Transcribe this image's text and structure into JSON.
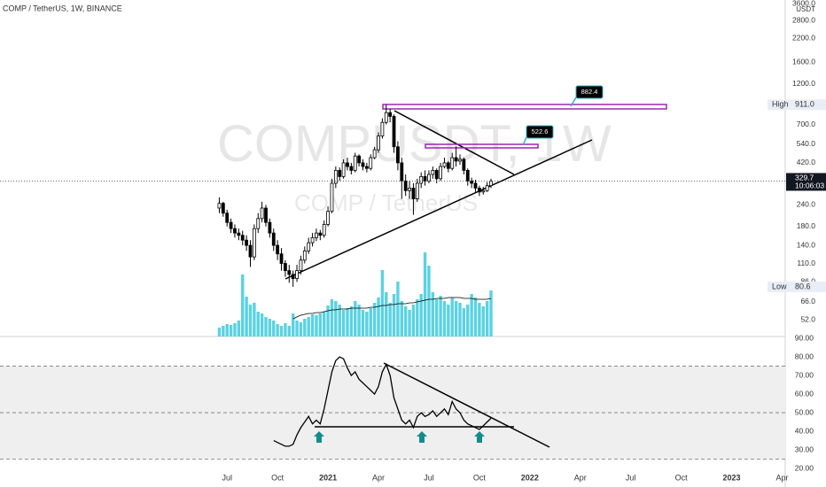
{
  "header": "COMP / TetherUS, 1W, BINANCE",
  "chart_data": [
    {
      "type": "candlestick",
      "watermark": [
        "COMPUSDT, 1W",
        "COMP / TetherUS"
      ],
      "y_unit": "USDT",
      "log_scale": true,
      "grid": false,
      "xlim": [
        -84.5,
        117.8
      ],
      "xticks": [
        {
          "value": -26,
          "label": "Jul"
        },
        {
          "value": -13,
          "label": "Oct"
        },
        {
          "value": 0,
          "label": "2021"
        },
        {
          "value": 13,
          "label": "Apr"
        },
        {
          "value": 26,
          "label": "Jul"
        },
        {
          "value": 39,
          "label": "Oct"
        },
        {
          "value": 52,
          "label": "2022"
        },
        {
          "value": 65,
          "label": "Apr"
        },
        {
          "value": 78,
          "label": "Jul"
        },
        {
          "value": 91,
          "label": "Oct"
        },
        {
          "value": 104,
          "label": "2023"
        },
        {
          "value": 117,
          "label": "Apr"
        }
      ],
      "ylim": [
        41.6,
        3673
      ],
      "yticks": [
        {
          "value": 3600,
          "label": "3600.0"
        },
        {
          "value": 2800,
          "label": "2800.0"
        },
        {
          "value": 2200,
          "label": "2200.0"
        },
        {
          "value": 1600,
          "label": "1600.0"
        },
        {
          "value": 1200,
          "label": "1200.0"
        },
        {
          "value": 700,
          "label": "700.0"
        },
        {
          "value": 540,
          "label": "540.0"
        },
        {
          "value": 420,
          "label": "420.0"
        },
        {
          "value": 240,
          "label": "240.0"
        },
        {
          "value": 180,
          "label": "180.0"
        },
        {
          "value": 140,
          "label": "140.0"
        },
        {
          "value": 110,
          "label": "110.0"
        },
        {
          "value": 86,
          "label": "86.0"
        },
        {
          "value": 66,
          "label": "66.0"
        },
        {
          "value": 52,
          "label": "52.0"
        }
      ],
      "up_color": "#ffffff",
      "down_color": "#000000",
      "volume_color": "#5ad2e2",
      "x": [
        -28,
        -27,
        -26,
        -25,
        -24,
        -23,
        -22,
        -21,
        -20,
        -19,
        -18,
        -17,
        -16,
        -15,
        -14,
        -13,
        -12,
        -11,
        -10,
        -9,
        -8,
        -7,
        -6,
        -5,
        -4,
        -3,
        -2,
        -1,
        0,
        1,
        2,
        3,
        4,
        5,
        6,
        7,
        8,
        9,
        10,
        11,
        12,
        13,
        14,
        15,
        16,
        17,
        18,
        19,
        20,
        21,
        22,
        23,
        24,
        25,
        26,
        27,
        28,
        29,
        30,
        31,
        32,
        33,
        34,
        35,
        36,
        37,
        38,
        39,
        40,
        41,
        42
      ],
      "open": [
        230,
        245,
        215,
        190,
        175,
        165,
        160,
        150,
        140,
        120,
        175,
        200,
        230,
        190,
        165,
        140,
        125,
        110,
        100,
        95,
        90,
        100,
        115,
        130,
        145,
        155,
        165,
        160,
        185,
        220,
        320,
        380,
        350,
        420,
        400,
        380,
        460,
        420,
        400,
        390,
        450,
        500,
        600,
        720,
        820,
        780,
        520,
        420,
        330,
        290,
        300,
        260,
        320,
        350,
        330,
        360,
        380,
        340,
        400,
        420,
        390,
        450,
        430,
        440,
        380,
        330,
        320,
        300,
        285,
        290,
        310
      ],
      "high": [
        265,
        250,
        225,
        200,
        185,
        175,
        170,
        160,
        150,
        185,
        215,
        250,
        240,
        200,
        175,
        150,
        135,
        115,
        108,
        100,
        108,
        122,
        138,
        155,
        165,
        175,
        172,
        195,
        235,
        340,
        400,
        395,
        440,
        450,
        420,
        480,
        470,
        440,
        420,
        470,
        520,
        630,
        760,
        911,
        860,
        800,
        560,
        450,
        360,
        330,
        320,
        340,
        370,
        380,
        380,
        400,
        390,
        420,
        450,
        430,
        480,
        522.6,
        470,
        450,
        390,
        345,
        335,
        310,
        305,
        325,
        340
      ],
      "low": [
        215,
        205,
        180,
        165,
        155,
        150,
        140,
        130,
        105,
        115,
        165,
        190,
        180,
        155,
        130,
        115,
        100,
        92,
        85,
        80.6,
        86,
        95,
        110,
        125,
        138,
        148,
        150,
        155,
        180,
        215,
        300,
        330,
        340,
        380,
        360,
        370,
        400,
        380,
        370,
        380,
        440,
        480,
        580,
        700,
        720,
        480,
        380,
        260,
        270,
        260,
        210,
        250,
        300,
        310,
        320,
        340,
        320,
        330,
        390,
        370,
        380,
        400,
        410,
        360,
        310,
        300,
        285,
        270,
        275,
        285,
        300
      ],
      "close": [
        245,
        215,
        190,
        175,
        165,
        160,
        150,
        140,
        120,
        175,
        200,
        230,
        190,
        165,
        140,
        125,
        110,
        100,
        95,
        90,
        100,
        115,
        130,
        145,
        155,
        165,
        160,
        185,
        220,
        320,
        380,
        350,
        420,
        400,
        380,
        460,
        420,
        400,
        390,
        450,
        500,
        600,
        720,
        820,
        780,
        520,
        420,
        330,
        290,
        300,
        260,
        320,
        350,
        330,
        360,
        380,
        340,
        400,
        420,
        390,
        450,
        430,
        440,
        380,
        330,
        320,
        300,
        285,
        290,
        310,
        329.7
      ],
      "volume_lim": [
        0,
        100
      ],
      "volume": [
        10,
        12,
        14,
        13,
        15,
        18,
        70,
        45,
        36,
        38,
        28,
        26,
        22,
        20,
        18,
        14,
        12,
        15,
        12,
        26,
        18,
        16,
        20,
        22,
        25,
        24,
        26,
        28,
        35,
        42,
        40,
        36,
        30,
        32,
        34,
        40,
        36,
        30,
        28,
        32,
        38,
        44,
        75,
        50,
        38,
        48,
        62,
        40,
        34,
        30,
        36,
        42,
        48,
        95,
        80,
        50,
        42,
        46,
        40,
        36,
        44,
        40,
        38,
        32,
        36,
        48,
        44,
        38,
        34,
        40,
        52
      ],
      "volume_ma": [
        null,
        null,
        null,
        null,
        null,
        null,
        null,
        null,
        null,
        null,
        null,
        null,
        null,
        null,
        null,
        null,
        null,
        null,
        null,
        20,
        22,
        24,
        25,
        26,
        26,
        27,
        27,
        28,
        29,
        30,
        30,
        31,
        31,
        31,
        32,
        32,
        32,
        32,
        32,
        33,
        33,
        34,
        35,
        35,
        36,
        36,
        37,
        37,
        37,
        38,
        38,
        39,
        40,
        41,
        42,
        42,
        43,
        43,
        43,
        44,
        44,
        44,
        44,
        43,
        43,
        43,
        42,
        42,
        42,
        42,
        43
      ],
      "high_marker": {
        "name": "High",
        "value": 911,
        "value_label": "911.0"
      },
      "low_marker": {
        "name": "Low",
        "value": 80.6
      },
      "last": {
        "value": 329.7,
        "countdown": "10:06:03"
      },
      "callouts": [
        882.4,
        522.6
      ]
    },
    {
      "type": "line",
      "color": "#000000",
      "xlim": [
        -84.5,
        117.8
      ],
      "ylim": [
        11,
        90.5
      ],
      "yticks": [
        {
          "value": 90,
          "label": "90.00"
        },
        {
          "value": 80,
          "label": "80.00"
        },
        {
          "value": 70,
          "label": "70.00"
        },
        {
          "value": 60,
          "label": "60.00"
        },
        {
          "value": 50,
          "label": "50.00"
        },
        {
          "value": 40,
          "label": "40.00"
        },
        {
          "value": 30,
          "label": "30.00"
        },
        {
          "value": 20,
          "label": "20.00"
        }
      ],
      "band": [
        25,
        75
      ],
      "levels": [
        75,
        50,
        25
      ],
      "x": [
        -14,
        -13,
        -12,
        -11,
        -10,
        -9,
        -8,
        -7,
        -6,
        -5,
        -4,
        -3,
        -2,
        -1,
        0,
        1,
        2,
        3,
        4,
        5,
        6,
        7,
        8,
        9,
        10,
        11,
        12,
        13,
        14,
        15,
        16,
        17,
        18,
        19,
        20,
        21,
        22,
        23,
        24,
        25,
        26,
        27,
        28,
        29,
        30,
        31,
        32,
        33,
        34,
        35,
        36,
        37,
        38,
        39,
        40,
        41,
        42
      ],
      "values": [
        35,
        34,
        33,
        32,
        32,
        33,
        38,
        42,
        45,
        48,
        44,
        46,
        44,
        52,
        62,
        72,
        78,
        80,
        79,
        74,
        70,
        72,
        68,
        66,
        64,
        62,
        60,
        64,
        72,
        76,
        70,
        58,
        52,
        46,
        44,
        46,
        42,
        48,
        50,
        48,
        49,
        51,
        48,
        50,
        52,
        49,
        56,
        52,
        50,
        46,
        44,
        43,
        42,
        41,
        43,
        45,
        47
      ]
    }
  ]
}
